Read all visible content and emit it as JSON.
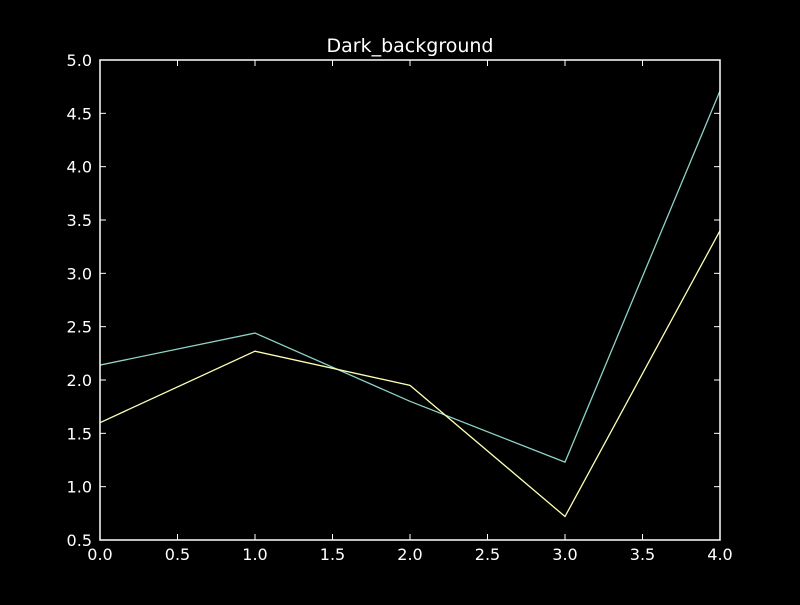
{
  "chart_data": {
    "type": "line",
    "title": "Dark_background",
    "xlabel": "",
    "ylabel": "",
    "xlim": [
      0.0,
      4.0
    ],
    "ylim": [
      0.5,
      5.0
    ],
    "x_ticks": [
      "0.0",
      "0.5",
      "1.0",
      "1.5",
      "2.0",
      "2.5",
      "3.0",
      "3.5",
      "4.0"
    ],
    "y_ticks": [
      "0.5",
      "1.0",
      "1.5",
      "2.0",
      "2.5",
      "3.0",
      "3.5",
      "4.0",
      "4.5",
      "5.0"
    ],
    "grid": false,
    "legend": "none",
    "background_color": "#000000",
    "foreground_color": "#ffffff",
    "x": [
      0,
      1,
      2,
      3,
      4
    ],
    "series": [
      {
        "color": "#8dd3c7",
        "values": [
          2.14,
          2.44,
          1.8,
          1.23,
          4.71
        ]
      },
      {
        "color": "#feffb3",
        "values": [
          1.6,
          2.27,
          1.95,
          0.72,
          3.4
        ]
      }
    ]
  }
}
